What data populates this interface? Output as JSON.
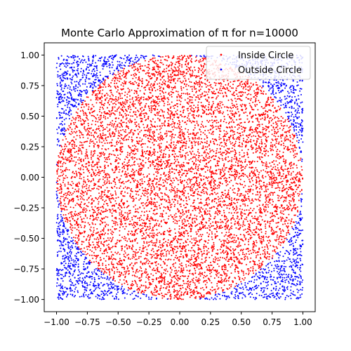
{
  "chart_data": {
    "type": "scatter",
    "title": "Monte Carlo Approximation of π for n=10000",
    "xlabel": "",
    "ylabel": "",
    "xlim": [
      -1.1,
      1.1
    ],
    "ylim": [
      -1.1,
      1.1
    ],
    "xticks": [
      -1.0,
      -0.75,
      -0.5,
      -0.25,
      0.0,
      0.25,
      0.5,
      0.75,
      1.0
    ],
    "yticks": [
      -1.0,
      -0.75,
      -0.5,
      -0.25,
      0.0,
      0.25,
      0.5,
      0.75,
      1.0
    ],
    "xtick_labels": [
      "−1.00",
      "−0.75",
      "−0.50",
      "−0.25",
      "0.00",
      "0.25",
      "0.50",
      "0.75",
      "1.00"
    ],
    "ytick_labels": [
      "−1.00",
      "−0.75",
      "−0.50",
      "−0.25",
      "0.00",
      "0.25",
      "0.50",
      "0.75",
      "1.00"
    ],
    "grid": false,
    "legend_position": "top-right",
    "n": 10000,
    "sampling": "uniform over [-1, 1] x [-1, 1]",
    "series": [
      {
        "name": "Inside Circle",
        "rule": "x^2 + y^2 <= 1",
        "color": "#ff0000"
      },
      {
        "name": "Outside Circle",
        "rule": "x^2 + y^2 > 1",
        "color": "#0000ff"
      }
    ]
  }
}
